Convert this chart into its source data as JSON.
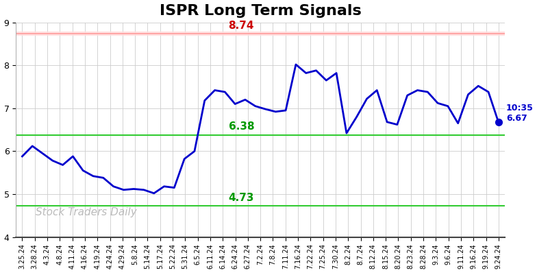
{
  "title": "ISPR Long Term Signals",
  "title_fontsize": 16,
  "x_labels": [
    "3.25.24",
    "3.28.24",
    "4.3.24",
    "4.8.24",
    "4.11.24",
    "4.16.24",
    "4.19.24",
    "4.24.24",
    "4.29.24",
    "5.8.24",
    "5.14.24",
    "5.17.24",
    "5.22.24",
    "5.31.24",
    "6.5.24",
    "6.11.24",
    "6.14.24",
    "6.24.24",
    "6.27.24",
    "7.2.24",
    "7.8.24",
    "7.11.24",
    "7.16.24",
    "7.22.24",
    "7.25.24",
    "7.30.24",
    "8.2.24",
    "8.7.24",
    "8.12.24",
    "8.15.24",
    "8.20.24",
    "8.23.24",
    "8.28.24",
    "9.3.24",
    "9.6.24",
    "9.11.24",
    "9.16.24",
    "9.19.24",
    "9.24.24"
  ],
  "y_values": [
    5.88,
    6.12,
    5.95,
    5.78,
    5.68,
    5.88,
    5.55,
    5.42,
    5.38,
    5.18,
    5.1,
    5.12,
    5.1,
    5.02,
    5.18,
    5.15,
    5.82,
    6.0,
    7.18,
    7.42,
    7.38,
    7.1,
    7.2,
    7.05,
    6.98,
    6.92,
    6.95,
    8.02,
    7.82,
    7.88,
    7.65,
    7.82,
    6.42,
    6.8,
    7.22,
    7.42,
    6.68,
    6.62,
    7.3,
    7.42,
    7.38,
    7.12,
    7.05,
    6.65,
    7.32,
    7.52,
    7.38,
    6.67
  ],
  "line_color": "#0000cc",
  "line_width": 2.0,
  "last_marker_size": 7,
  "hline_red_value": 8.74,
  "hline_red_color": "#ff9999",
  "hline_red_band_color": "#ffdddd",
  "hline_red_label_color": "#cc0000",
  "hline_green1_value": 6.38,
  "hline_green2_value": 4.73,
  "hline_green_color": "#33cc33",
  "hline_green_label_color": "#009900",
  "annotation_last_time": "10:35",
  "annotation_last_price": "6.67",
  "annotation_color": "#0000cc",
  "annotation_fontsize": 9,
  "watermark": "Stock Traders Daily",
  "watermark_color": "#bbbbbb",
  "watermark_fontsize": 11,
  "ylim_min": 4.0,
  "ylim_max": 9.0,
  "yticks": [
    4,
    5,
    6,
    7,
    8,
    9
  ],
  "bg_color": "#ffffff",
  "grid_color": "#cccccc",
  "xlabel_fontsize": 7.0
}
